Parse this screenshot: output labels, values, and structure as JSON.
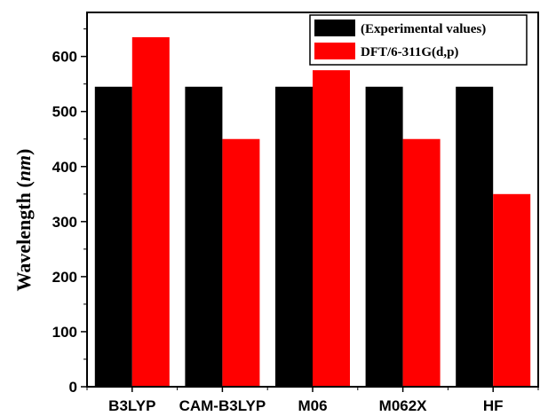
{
  "chart_data": {
    "type": "bar",
    "categories": [
      "B3LYP",
      "CAM-B3LYP",
      "M06",
      "M062X",
      "HF"
    ],
    "series": [
      {
        "name": "(Experimental values)",
        "color": "#000000",
        "values": [
          545,
          545,
          545,
          545,
          545
        ]
      },
      {
        "name": "DFT/6-311G(d,p)",
        "color": "#ff0000",
        "values": [
          635,
          450,
          575,
          450,
          350
        ]
      }
    ],
    "ylabel_main": "Wavelength (",
    "ylabel_unit": "nm",
    "ylabel_close": ")",
    "ylim": [
      0,
      680
    ],
    "yticks": [
      0,
      100,
      200,
      300,
      400,
      500,
      600
    ],
    "legend_position": "top-right",
    "grid": false
  }
}
